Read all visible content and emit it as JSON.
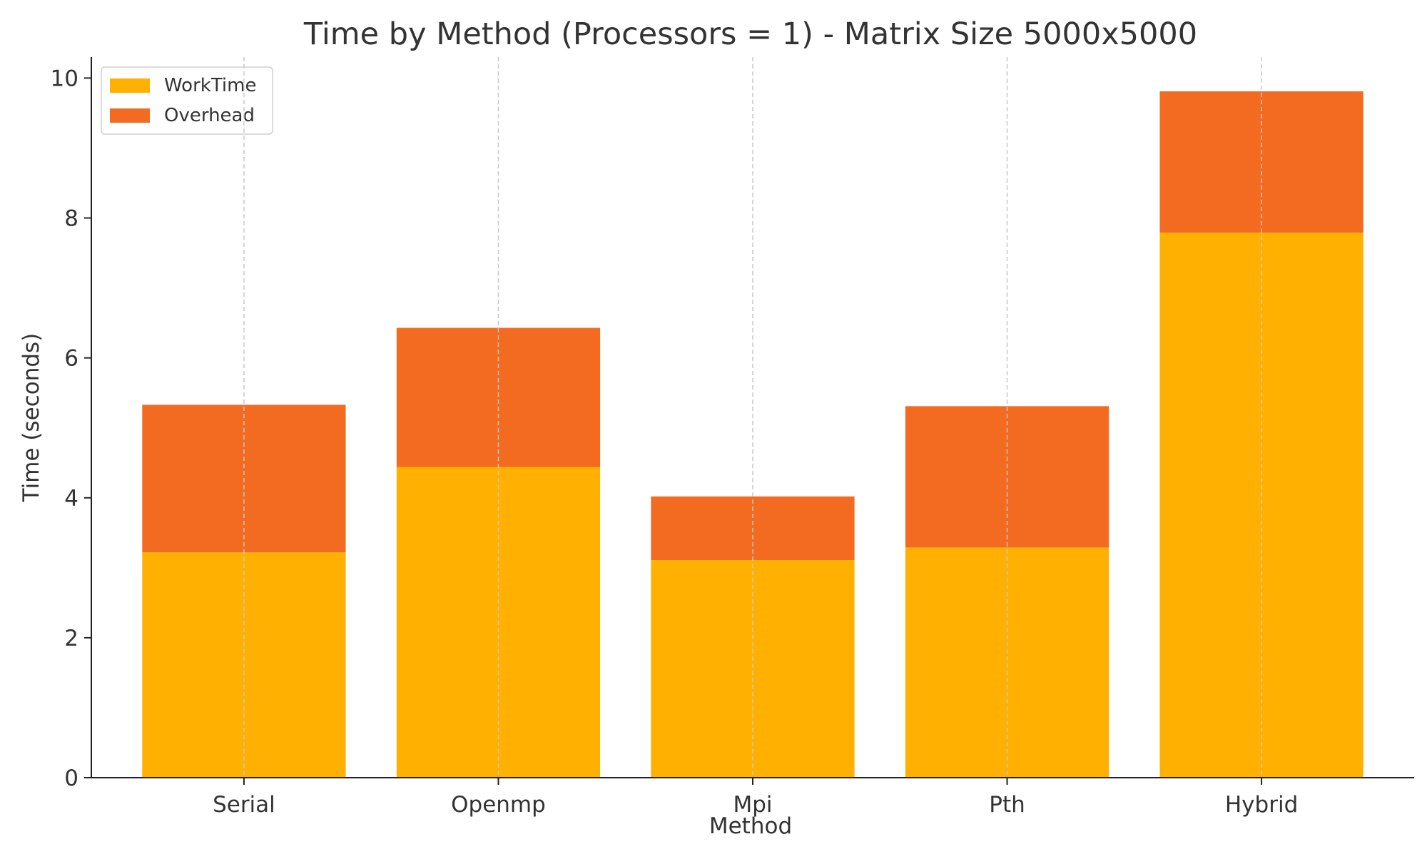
{
  "chart_data": {
    "type": "bar",
    "stacked": true,
    "title": "Time by Method (Processors = 1) - Matrix Size 5000x5000",
    "xlabel": "Method",
    "ylabel": "Time (seconds)",
    "categories": [
      "Serial",
      "Openmp",
      "Mpi",
      "Pth",
      "Hybrid"
    ],
    "series": [
      {
        "name": "WorkTime",
        "color": "#FFB000",
        "values": [
          3.22,
          4.44,
          3.11,
          3.29,
          7.79
        ]
      },
      {
        "name": "Overhead",
        "color": "#F26B21",
        "values": [
          2.11,
          1.99,
          0.91,
          2.02,
          2.02
        ]
      }
    ],
    "ylim": [
      0,
      10.3
    ],
    "yticks": [
      0,
      2,
      4,
      6,
      8,
      10
    ],
    "grid": "x-dashed",
    "legend_position": "top-left"
  }
}
